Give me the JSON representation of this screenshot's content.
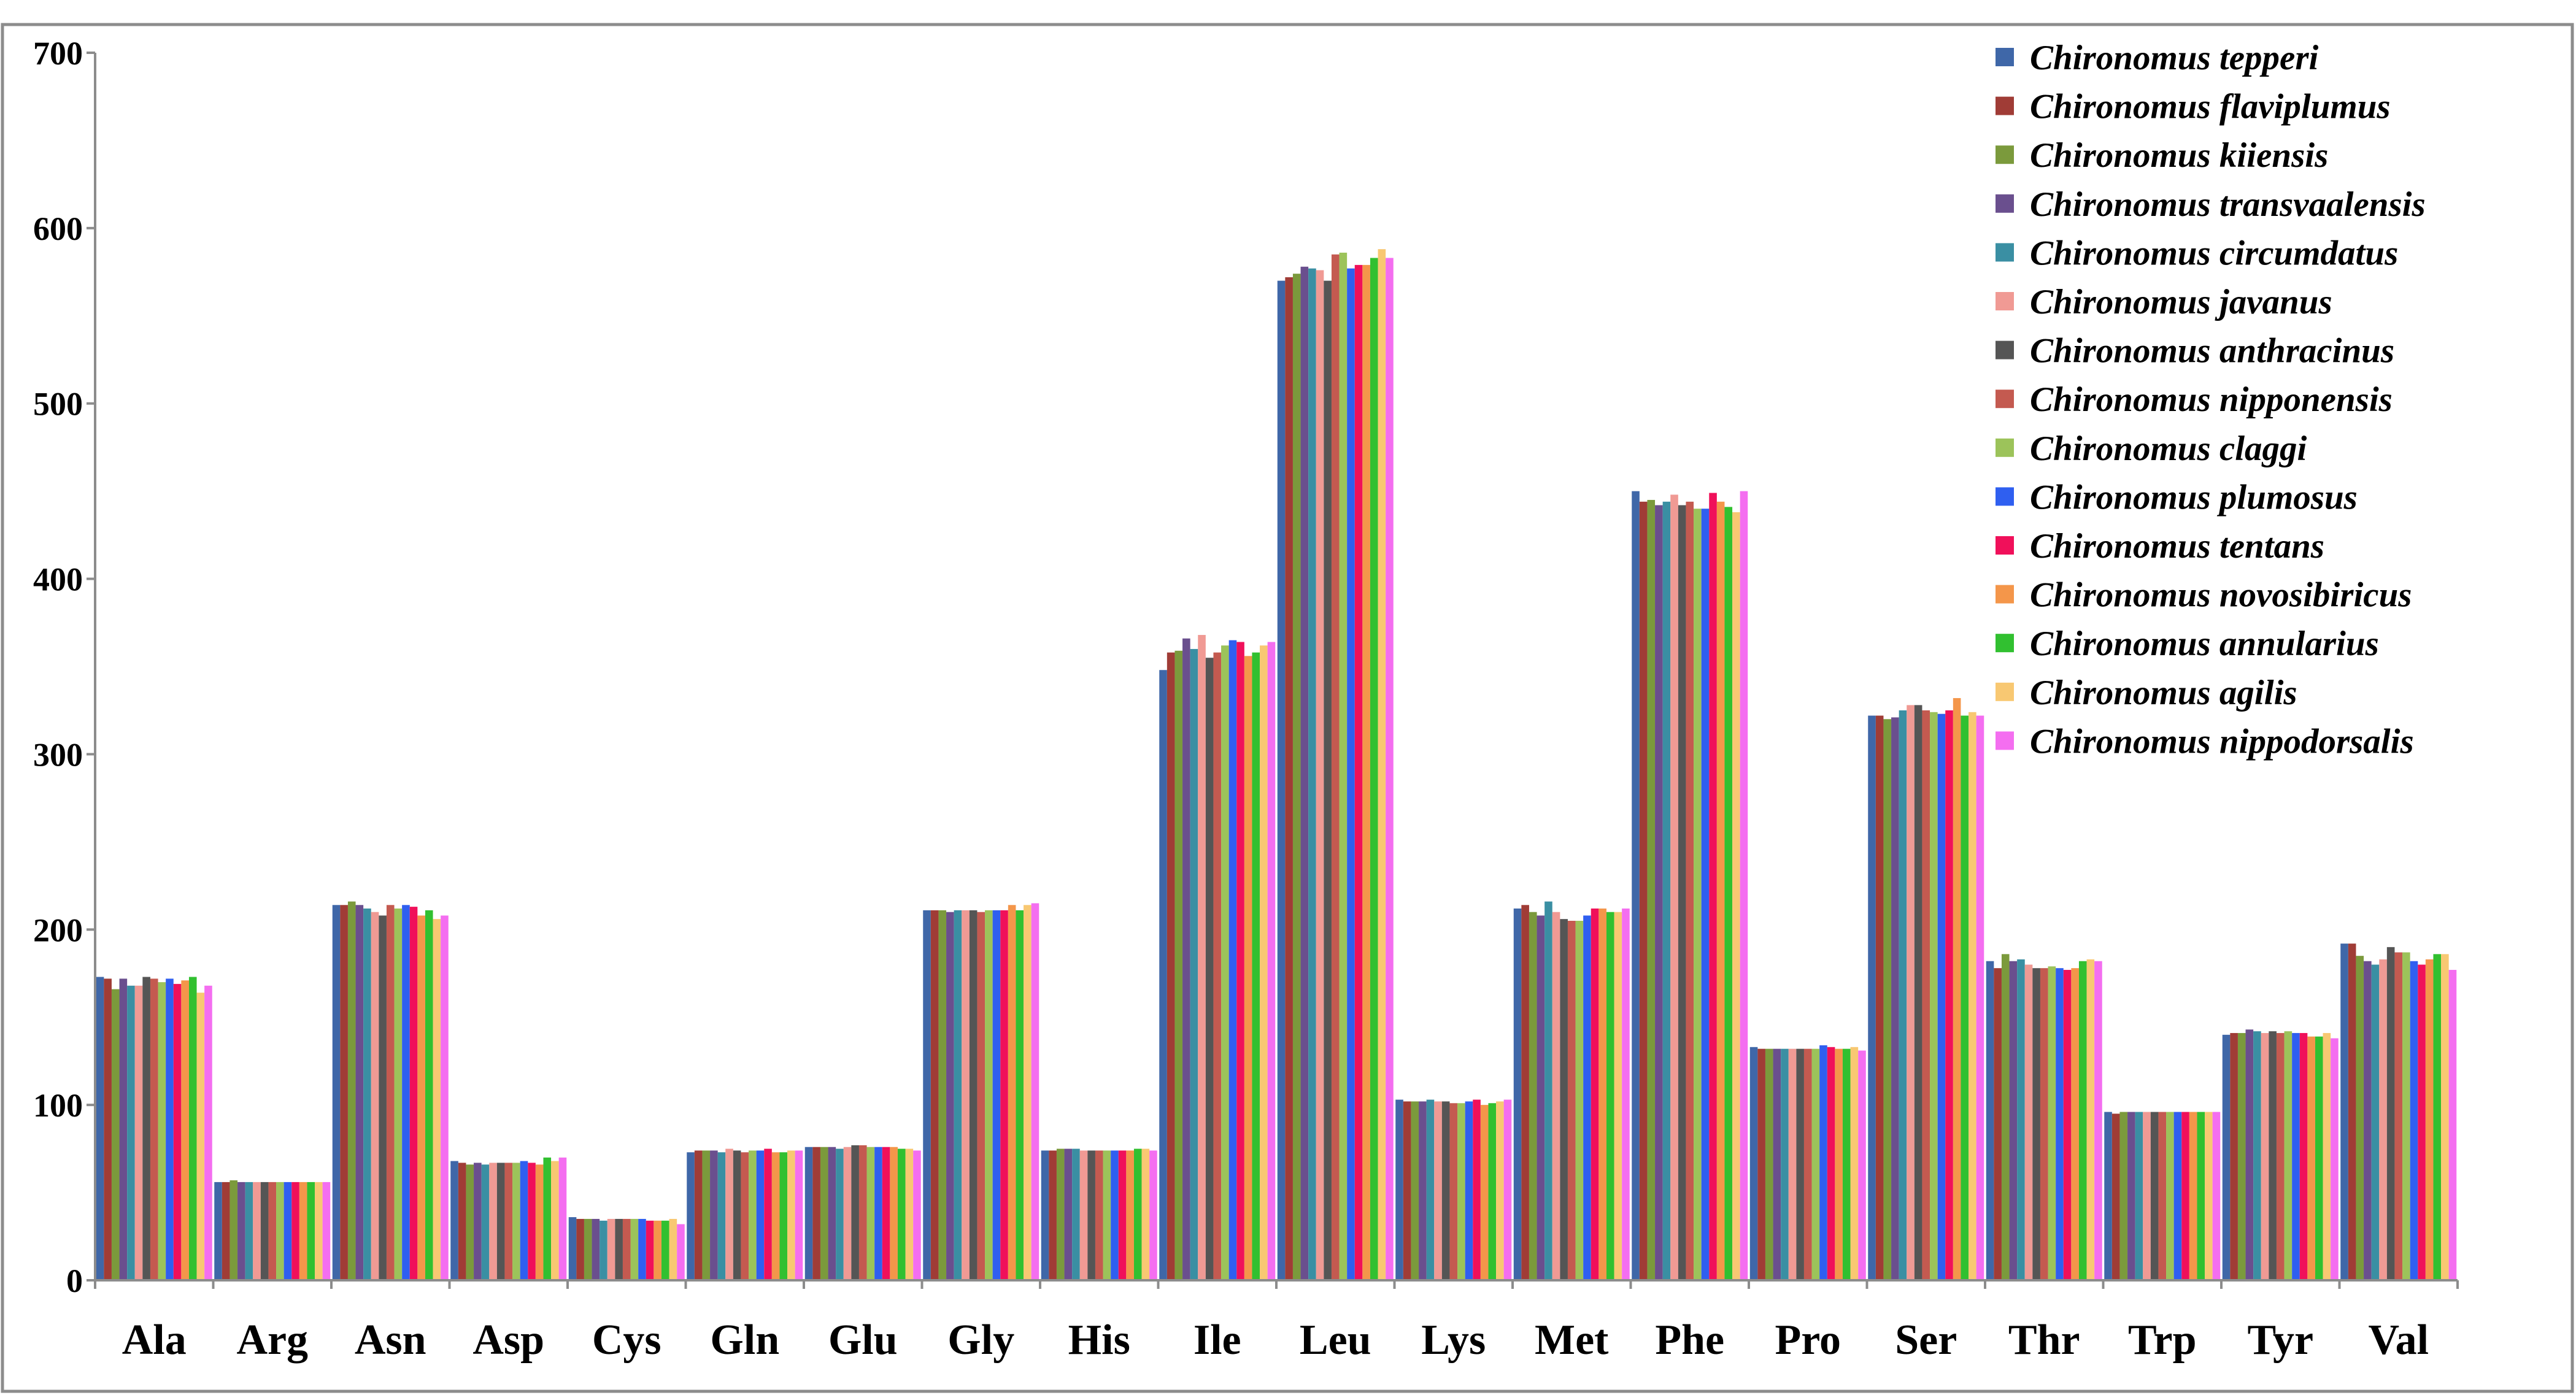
{
  "chart_data": {
    "type": "bar",
    "title": "",
    "xlabel": "",
    "ylabel": "",
    "ylim": [
      0,
      700
    ],
    "yticks": [
      0,
      100,
      200,
      300,
      400,
      500,
      600,
      700
    ],
    "grid": false,
    "legend": "top-right",
    "categories": [
      "Ala",
      "Arg",
      "Asn",
      "Asp",
      "Cys",
      "Gln",
      "Glu",
      "Gly",
      "His",
      "Ile",
      "Leu",
      "Lys",
      "Met",
      "Phe",
      "Pro",
      "Ser",
      "Thr",
      "Trp",
      "Tyr",
      "Val"
    ],
    "series": [
      {
        "name": "Chironomus tepperi",
        "color": "#3f67a8",
        "values": [
          173,
          56,
          214,
          68,
          36,
          73,
          76,
          211,
          74,
          348,
          570,
          103,
          212,
          450,
          133,
          322,
          182,
          96,
          140,
          192
        ]
      },
      {
        "name": "Chironomus flaviplumus",
        "color": "#a03c36",
        "values": [
          172,
          56,
          214,
          67,
          35,
          74,
          76,
          211,
          74,
          358,
          572,
          102,
          214,
          444,
          132,
          322,
          178,
          95,
          141,
          192
        ]
      },
      {
        "name": "Chironomus kiiensis",
        "color": "#7b9a3c",
        "values": [
          166,
          57,
          216,
          66,
          35,
          74,
          76,
          211,
          75,
          359,
          574,
          102,
          210,
          445,
          132,
          320,
          186,
          96,
          141,
          185
        ]
      },
      {
        "name": "Chironomus transvaalensis",
        "color": "#6a4f8e",
        "values": [
          172,
          56,
          214,
          67,
          35,
          74,
          76,
          210,
          75,
          366,
          578,
          102,
          208,
          442,
          132,
          321,
          182,
          96,
          143,
          182
        ]
      },
      {
        "name": "Chironomus circumdatus",
        "color": "#3a8fa3",
        "values": [
          168,
          56,
          212,
          66,
          34,
          73,
          75,
          211,
          75,
          360,
          577,
          103,
          216,
          444,
          132,
          325,
          183,
          96,
          142,
          180
        ]
      },
      {
        "name": "Chironomus javanus",
        "color": "#f09a94",
        "values": [
          168,
          56,
          210,
          67,
          35,
          75,
          76,
          211,
          74,
          368,
          576,
          102,
          210,
          448,
          132,
          328,
          180,
          96,
          141,
          183
        ]
      },
      {
        "name": "Chironomus anthracinus",
        "color": "#555555",
        "values": [
          173,
          56,
          208,
          67,
          35,
          74,
          77,
          211,
          74,
          355,
          570,
          102,
          206,
          442,
          132,
          328,
          178,
          96,
          142,
          190
        ]
      },
      {
        "name": "Chironomus nipponensis",
        "color": "#c45a50",
        "values": [
          172,
          56,
          214,
          67,
          35,
          73,
          77,
          210,
          74,
          358,
          585,
          101,
          205,
          444,
          132,
          325,
          178,
          96,
          141,
          187
        ]
      },
      {
        "name": "Chironomus claggi",
        "color": "#9cc35a",
        "values": [
          170,
          56,
          212,
          67,
          35,
          74,
          76,
          211,
          74,
          362,
          586,
          101,
          205,
          440,
          132,
          324,
          179,
          96,
          142,
          187
        ]
      },
      {
        "name": "Chironomus plumosus",
        "color": "#2f5ff0",
        "values": [
          172,
          56,
          214,
          68,
          35,
          74,
          76,
          211,
          74,
          365,
          577,
          102,
          208,
          440,
          134,
          323,
          178,
          96,
          141,
          182
        ]
      },
      {
        "name": "Chironomus tentans",
        "color": "#f0105a",
        "values": [
          169,
          56,
          213,
          67,
          34,
          75,
          76,
          211,
          74,
          364,
          579,
          103,
          212,
          449,
          133,
          325,
          177,
          96,
          141,
          180
        ]
      },
      {
        "name": "Chironomus novosibiricus",
        "color": "#f4964a",
        "values": [
          171,
          56,
          208,
          66,
          34,
          73,
          76,
          214,
          74,
          356,
          579,
          100,
          212,
          444,
          132,
          332,
          178,
          96,
          139,
          183
        ]
      },
      {
        "name": "Chironomus annularius",
        "color": "#31c030",
        "values": [
          173,
          56,
          211,
          70,
          34,
          73,
          75,
          211,
          75,
          358,
          583,
          101,
          210,
          441,
          132,
          322,
          182,
          96,
          139,
          186
        ]
      },
      {
        "name": "Chironomus agilis",
        "color": "#f8c872",
        "values": [
          164,
          56,
          206,
          68,
          35,
          74,
          75,
          214,
          75,
          362,
          588,
          102,
          210,
          438,
          133,
          324,
          183,
          96,
          141,
          186
        ]
      },
      {
        "name": "Chironomus nippodorsalis",
        "color": "#f46ef0",
        "values": [
          168,
          56,
          208,
          70,
          32,
          74,
          74,
          215,
          74,
          364,
          583,
          103,
          212,
          450,
          131,
          322,
          182,
          96,
          138,
          177
        ]
      }
    ]
  }
}
